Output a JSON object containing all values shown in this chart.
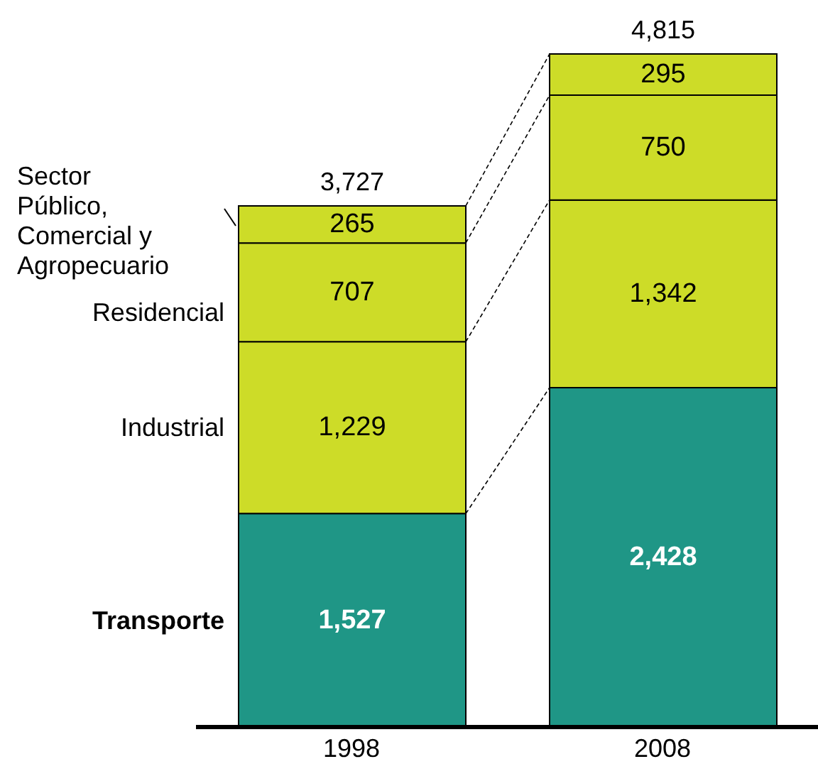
{
  "chart_data": {
    "type": "bar",
    "stacked": true,
    "categories": [
      "1998",
      "2008"
    ],
    "legend": "left",
    "series": [
      {
        "name": "Transporte",
        "color": "#1f9686",
        "values": [
          1527,
          2428
        ],
        "value_labels": [
          "1,527",
          "2,428"
        ]
      },
      {
        "name": "Industrial",
        "color": "#cddc28",
        "values": [
          1229,
          1342
        ],
        "value_labels": [
          "1,229",
          "1,342"
        ]
      },
      {
        "name": "Residencial",
        "color": "#cddc28",
        "values": [
          707,
          750
        ],
        "value_labels": [
          "707",
          "750"
        ]
      },
      {
        "name": "Sector Público, Comercial y Agropecuario",
        "color": "#cddc28",
        "values": [
          265,
          295
        ],
        "value_labels": [
          "265",
          "295"
        ]
      }
    ],
    "totals": [
      "3,727",
      "4,815"
    ]
  }
}
